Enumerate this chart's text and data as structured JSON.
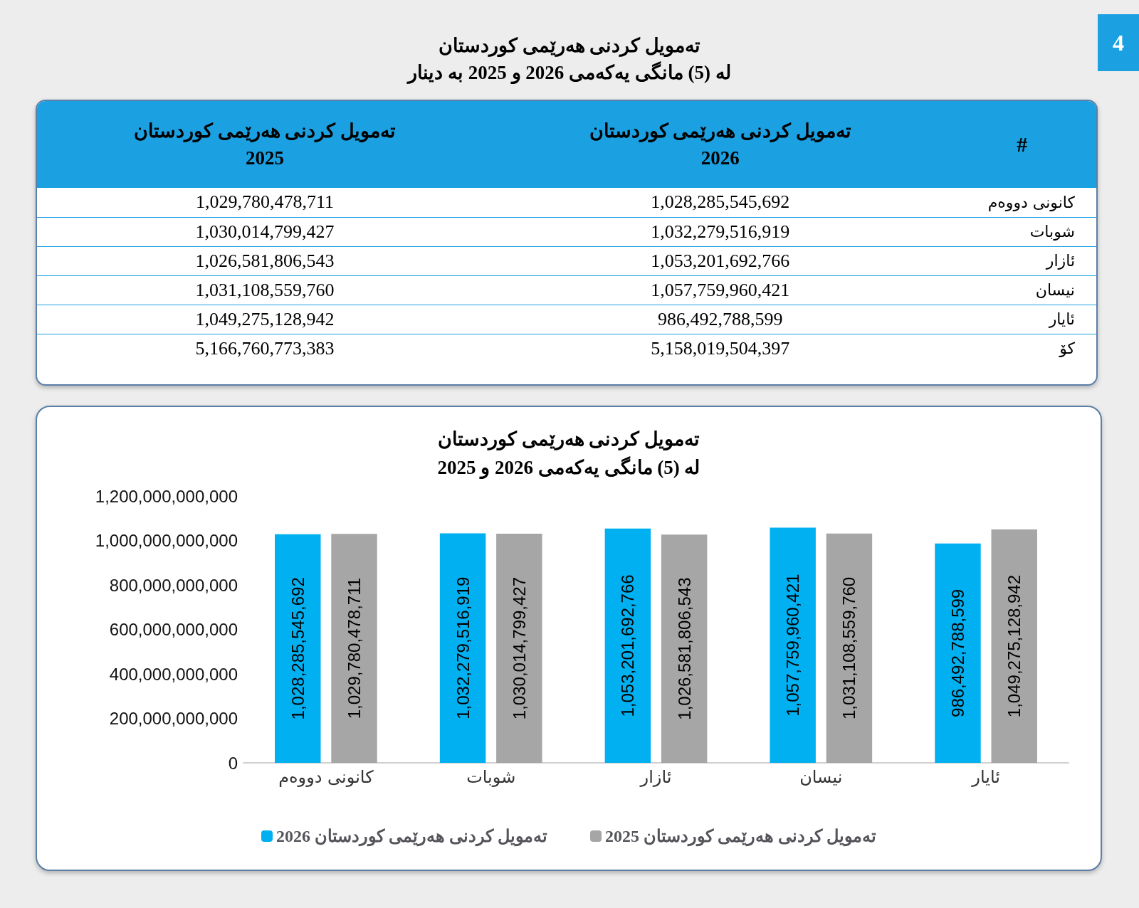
{
  "chart_data": [
    {
      "type": "other",
      "title": "تەمویل کردنی هەرێمی کوردستان\nلە (5) مانگی یەکەمی 2026 و 2025 بە دینار",
      "xlabel": "#",
      "annotations": [
        "4"
      ],
      "categories": [
        "كانونی دووەم",
        "شوبات",
        "ئازار",
        "نیسان",
        "ئایار",
        "کۆ"
      ],
      "series": [
        {
          "name": "تەمویل کردنی هەرێمی کوردستان\n2026",
          "values": [
            1028285545692,
            1032279516919,
            1053201692766,
            1057759960421,
            986492788599,
            5158019504397
          ],
          "value_labels": [
            "1,028,285,545,692",
            "1,032,279,516,919",
            "1,053,201,692,766",
            "1,057,759,960,421",
            "986,492,788,599",
            "5,158,019,504,397"
          ]
        },
        {
          "name": "تەمویل کردنی هەرێمی کوردستان\n2025",
          "values": [
            1029780478711,
            1030014799427,
            1026581806543,
            1031108559760,
            1049275128942,
            5166760773383
          ],
          "value_labels": [
            "1,029,780,478,711",
            "1,030,014,799,427",
            "1,026,581,806,543",
            "1,031,108,559,760",
            "1,049,275,128,942",
            "5,166,760,773,383"
          ]
        }
      ]
    },
    {
      "type": "bar",
      "title": "تەمویل کردنی هەرێمی کوردستان\nلە (5) مانگی یەکەمی 2026 و 2025",
      "categories": [
        "كانونی دووەم",
        "شوبات",
        "ئازار",
        "نیسان",
        "ئایار"
      ],
      "series": [
        {
          "name": "تەمویل کردنی هەرێمی کوردستان 2026",
          "color": "#00b0f0",
          "values": [
            1028285545692,
            1032279516919,
            1053201692766,
            1057759960421,
            986492788599
          ],
          "value_labels": [
            "1,028,285,545,692",
            "1,032,279,516,919",
            "1,053,201,692,766",
            "1,057,759,960,421",
            "986,492,788,599"
          ]
        },
        {
          "name": "تەمویل کردنی هەرێمی کوردستان 2025",
          "color": "#a6a6a6",
          "values": [
            1029780478711,
            1030014799427,
            1026581806543,
            1031108559760,
            1049275128942
          ],
          "value_labels": [
            "1,029,780,478,711",
            "1,030,014,799,427",
            "1,026,581,806,543",
            "1,031,108,559,760",
            "1,049,275,128,942"
          ]
        }
      ],
      "ylim": [
        0,
        1200000000000
      ],
      "yticks": [
        0,
        {
          "value": 200000000000,
          "label": "200,000,000,000"
        },
        {
          "value": 400000000000,
          "label": "400,000,000,000"
        },
        {
          "value": 600000000000,
          "label": "600,000,000,000"
        },
        {
          "value": 800000000000,
          "label": "800,000,000,000"
        },
        {
          "value": 1000000000000,
          "label": "1,000,000,000,000"
        },
        {
          "value": 1200000000000,
          "label": "1,200,000,000,000"
        }
      ],
      "grid": false,
      "legend": "bottom"
    }
  ]
}
